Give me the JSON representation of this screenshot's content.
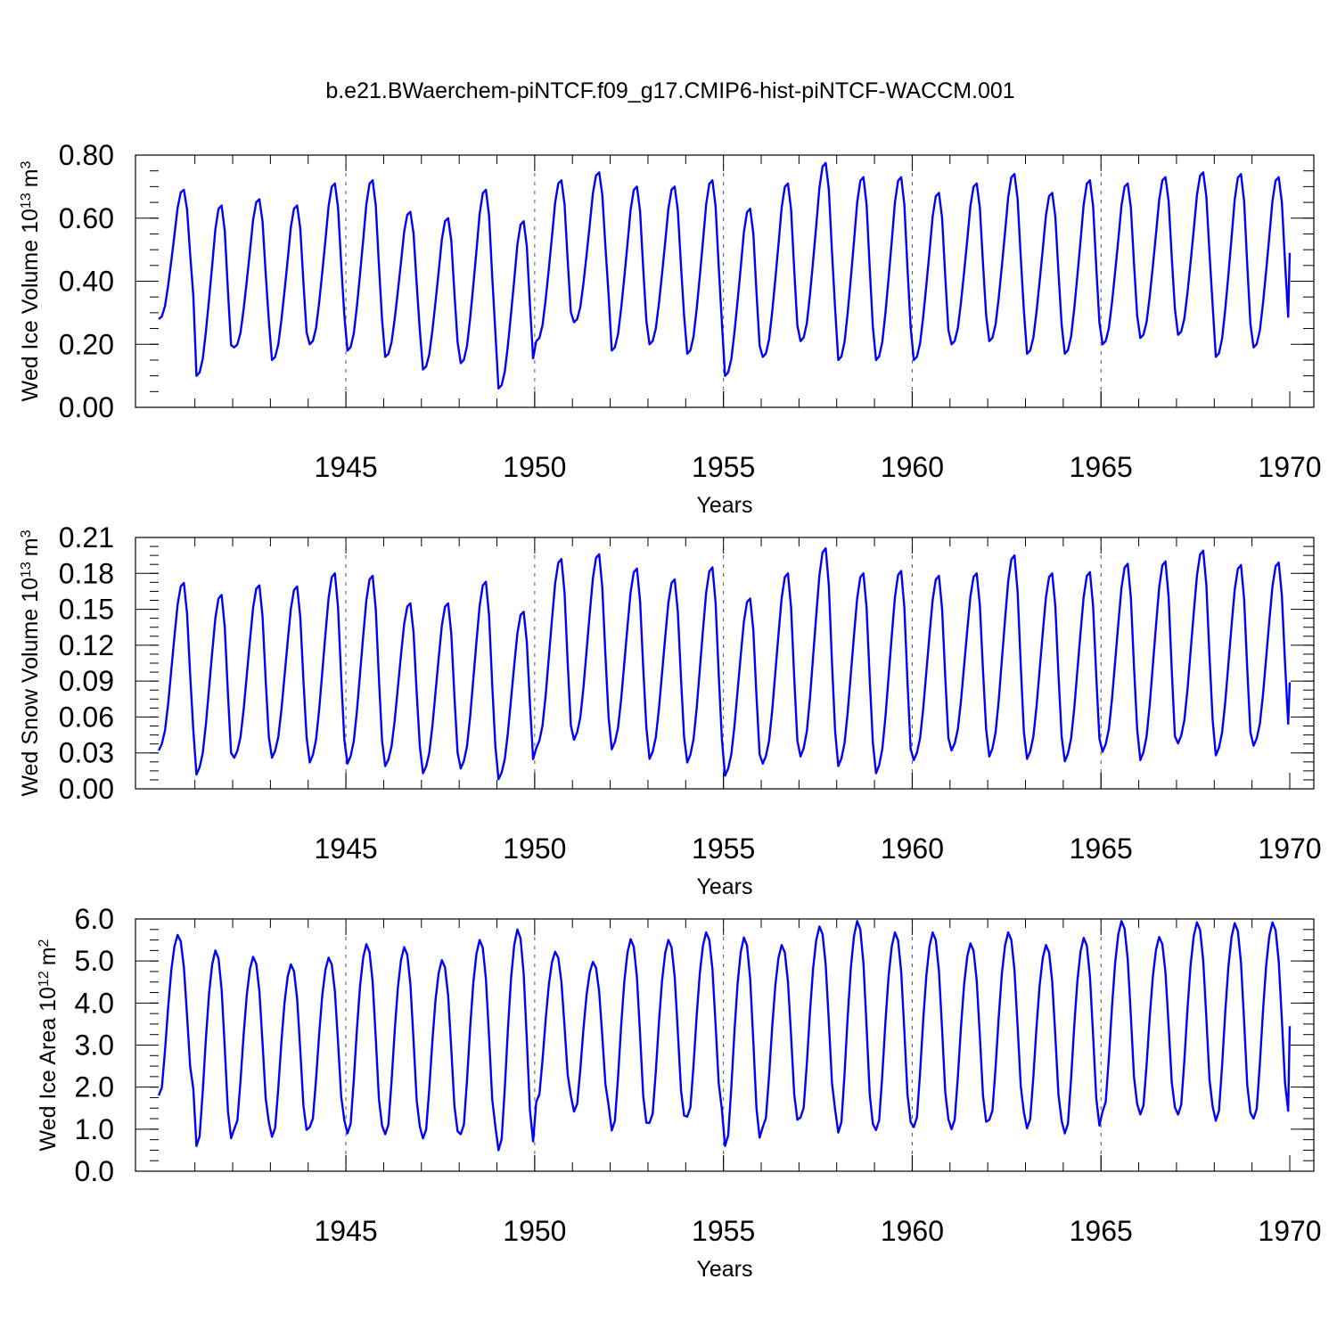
{
  "title": "b.e21.BWaerchem-piNTCF.f09_g17.CMIP6-hist-piNTCF-WACCM.001",
  "colors": {
    "series": "#0000ff",
    "grid": "#555555",
    "axis": "#000000"
  },
  "chart_data": [
    {
      "type": "line",
      "xlabel": "Years",
      "ylabel_main": "Wed Ice Volume 10",
      "ylabel_exp": "13",
      "ylabel_unit": "m",
      "ylabel_unit_exp": "3",
      "xlim": [
        1940.04,
        1970.0
      ],
      "ylim": [
        0.0,
        0.8
      ],
      "xticks": [
        1945,
        1950,
        1955,
        1960,
        1965,
        1970
      ],
      "xtick_labels": [
        "1945",
        "1950",
        "1955",
        "1960",
        "1965",
        "1970"
      ],
      "yticks": [
        0.0,
        0.2,
        0.4,
        0.6,
        0.8
      ],
      "ytick_labels": [
        "0.00",
        "0.20",
        "0.40",
        "0.60",
        "0.80"
      ],
      "year_gridlines": [
        1945,
        1950,
        1955,
        1960,
        1965
      ],
      "seasonal_pattern": [
        0.0,
        0.02,
        0.1,
        0.26,
        0.45,
        0.65,
        0.86,
        0.98,
        1.0,
        0.85,
        0.5,
        0.18
      ],
      "annual_max": [
        0.69,
        0.64,
        0.66,
        0.64,
        0.71,
        0.72,
        0.62,
        0.6,
        0.69,
        0.59,
        0.72,
        0.745,
        0.7,
        0.7,
        0.72,
        0.63,
        0.71,
        0.775,
        0.73,
        0.73,
        0.68,
        0.71,
        0.74,
        0.68,
        0.72,
        0.71,
        0.73,
        0.745,
        0.74,
        0.73
      ],
      "annual_min": [
        0.28,
        0.1,
        0.19,
        0.15,
        0.2,
        0.18,
        0.16,
        0.12,
        0.14,
        0.06,
        0.21,
        0.27,
        0.18,
        0.2,
        0.17,
        0.1,
        0.16,
        0.21,
        0.15,
        0.15,
        0.15,
        0.2,
        0.21,
        0.17,
        0.17,
        0.2,
        0.22,
        0.23,
        0.16,
        0.19
      ],
      "final_value": 0.49
    },
    {
      "type": "line",
      "xlabel": "Years",
      "ylabel_main": "Wed Snow Volume 10",
      "ylabel_exp": "13",
      "ylabel_unit": "m",
      "ylabel_unit_exp": "3",
      "xlim": [
        1940.04,
        1970.0
      ],
      "ylim": [
        0.0,
        0.21
      ],
      "xticks": [
        1945,
        1950,
        1955,
        1960,
        1965,
        1970
      ],
      "xtick_labels": [
        "1945",
        "1950",
        "1955",
        "1960",
        "1965",
        "1970"
      ],
      "yticks": [
        0.0,
        0.03,
        0.06,
        0.09,
        0.12,
        0.15,
        0.18,
        0.21
      ],
      "ytick_labels": [
        "0.00",
        "0.03",
        "0.06",
        "0.09",
        "0.12",
        "0.15",
        "0.18",
        "0.21"
      ],
      "year_gridlines": [
        1945,
        1950,
        1955,
        1960,
        1965
      ],
      "seasonal_pattern": [
        0.0,
        0.04,
        0.12,
        0.28,
        0.48,
        0.68,
        0.87,
        0.98,
        1.0,
        0.82,
        0.45,
        0.12
      ],
      "annual_max": [
        0.172,
        0.162,
        0.17,
        0.169,
        0.18,
        0.178,
        0.155,
        0.155,
        0.173,
        0.148,
        0.192,
        0.196,
        0.184,
        0.175,
        0.185,
        0.159,
        0.18,
        0.201,
        0.18,
        0.182,
        0.178,
        0.18,
        0.195,
        0.18,
        0.181,
        0.188,
        0.19,
        0.199,
        0.187,
        0.189
      ],
      "annual_min": [
        0.032,
        0.012,
        0.026,
        0.026,
        0.022,
        0.021,
        0.019,
        0.013,
        0.017,
        0.008,
        0.034,
        0.041,
        0.033,
        0.025,
        0.022,
        0.011,
        0.021,
        0.027,
        0.019,
        0.013,
        0.024,
        0.032,
        0.027,
        0.025,
        0.023,
        0.031,
        0.024,
        0.038,
        0.028,
        0.036
      ],
      "final_value": 0.089
    },
    {
      "type": "line",
      "xlabel": "Years",
      "ylabel_main": "Wed Ice Area 10",
      "ylabel_exp": "12",
      "ylabel_unit": "m",
      "ylabel_unit_exp": "2",
      "xlim": [
        1940.04,
        1970.0
      ],
      "ylim": [
        0.0,
        6.0
      ],
      "xticks": [
        1945,
        1950,
        1955,
        1960,
        1965,
        1970
      ],
      "xtick_labels": [
        "1945",
        "1950",
        "1955",
        "1960",
        "1965",
        "1970"
      ],
      "yticks": [
        0.0,
        1.0,
        2.0,
        3.0,
        4.0,
        5.0,
        6.0
      ],
      "ytick_labels": [
        "0.0",
        "1.0",
        "2.0",
        "3.0",
        "4.0",
        "5.0",
        "6.0"
      ],
      "year_gridlines": [
        1945,
        1950,
        1955,
        1960,
        1965
      ],
      "seasonal_pattern": [
        0.0,
        0.05,
        0.28,
        0.55,
        0.78,
        0.93,
        1.0,
        0.96,
        0.8,
        0.5,
        0.18,
        0.04
      ],
      "annual_max": [
        5.62,
        5.25,
        5.1,
        4.92,
        5.08,
        5.4,
        5.33,
        5.02,
        5.5,
        5.75,
        5.22,
        4.98,
        5.52,
        5.5,
        5.68,
        5.56,
        5.38,
        5.82,
        5.95,
        5.68,
        5.68,
        5.42,
        5.68,
        5.38,
        5.55,
        5.95,
        5.57,
        5.92,
        5.9,
        5.92
      ],
      "annual_min": [
        1.8,
        0.6,
        1.0,
        0.82,
        1.05,
        0.9,
        0.88,
        0.78,
        0.88,
        0.5,
        1.65,
        1.42,
        0.97,
        1.15,
        1.3,
        0.6,
        1.05,
        1.28,
        0.92,
        0.98,
        1.05,
        1.0,
        1.22,
        1.02,
        0.9,
        1.42,
        1.35,
        1.35,
        1.2,
        1.25
      ],
      "final_value": 3.45
    }
  ]
}
